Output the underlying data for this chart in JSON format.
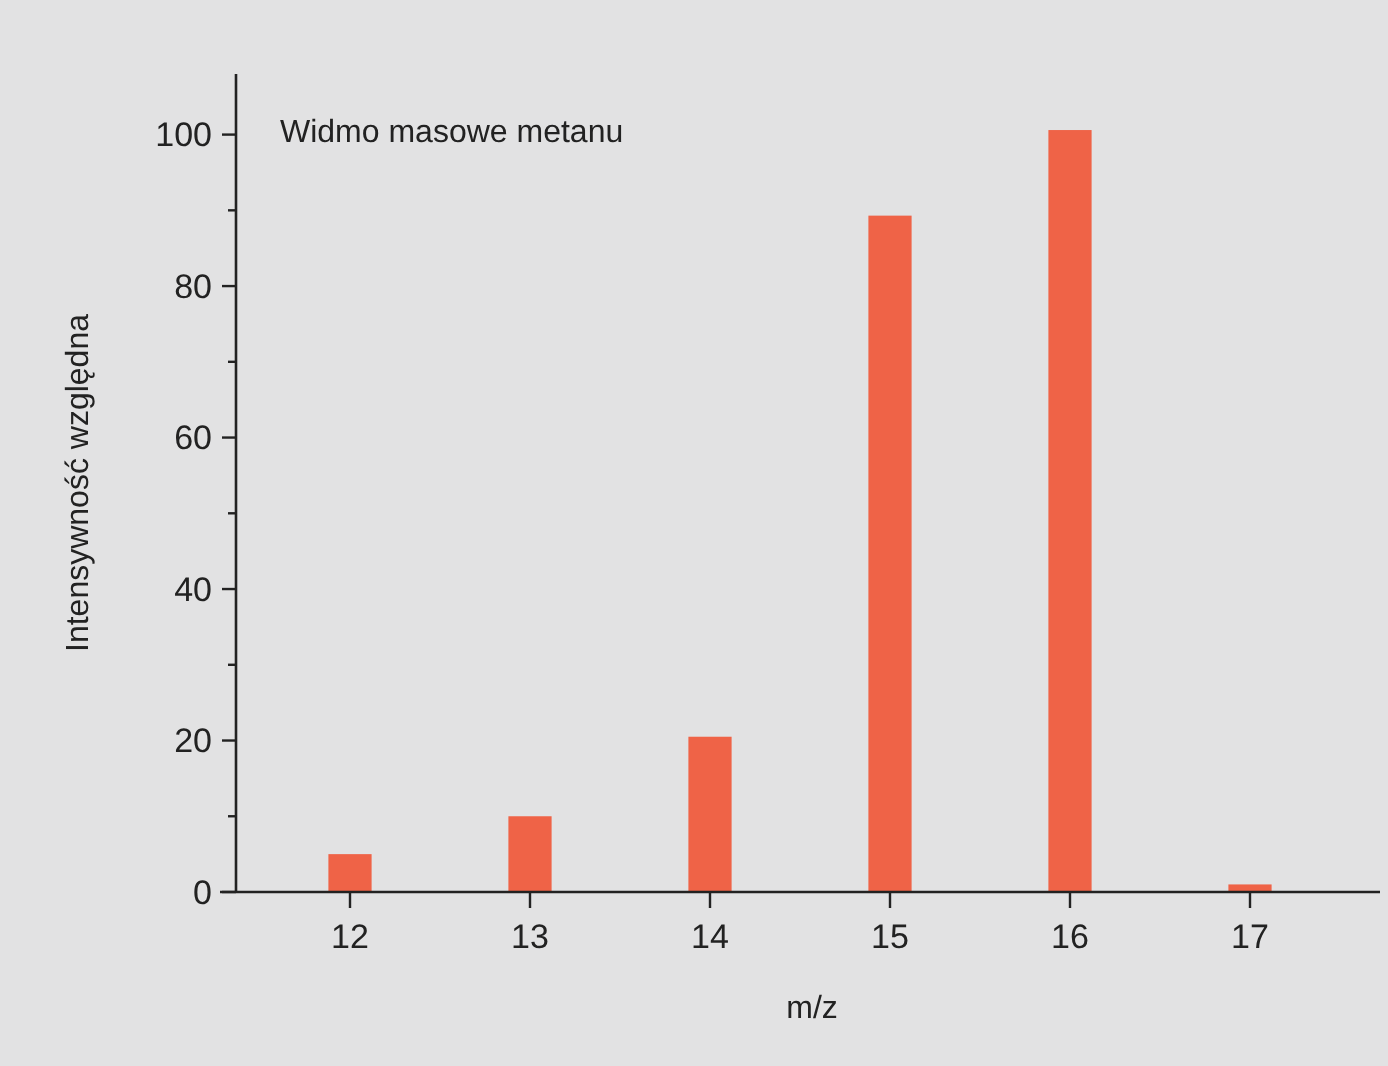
{
  "chart_data": {
    "type": "bar",
    "title": "Widmo masowe metanu",
    "xlabel": "m/z",
    "ylabel": "Intensywność względna",
    "categories": [
      "12",
      "13",
      "14",
      "15",
      "16",
      "17"
    ],
    "values": [
      5,
      10,
      20.5,
      89.3,
      100.6,
      1
    ],
    "color": "#ef6347",
    "ylim": [
      0,
      108
    ],
    "yticks": [
      0,
      {
        "value": 10,
        "label": null
      },
      20,
      {
        "value": 30,
        "label": null
      },
      40,
      {
        "value": 50,
        "label": null
      },
      60,
      {
        "value": 70,
        "label": null
      },
      80,
      {
        "value": 90,
        "label": null
      },
      100
    ],
    "grid": false
  }
}
